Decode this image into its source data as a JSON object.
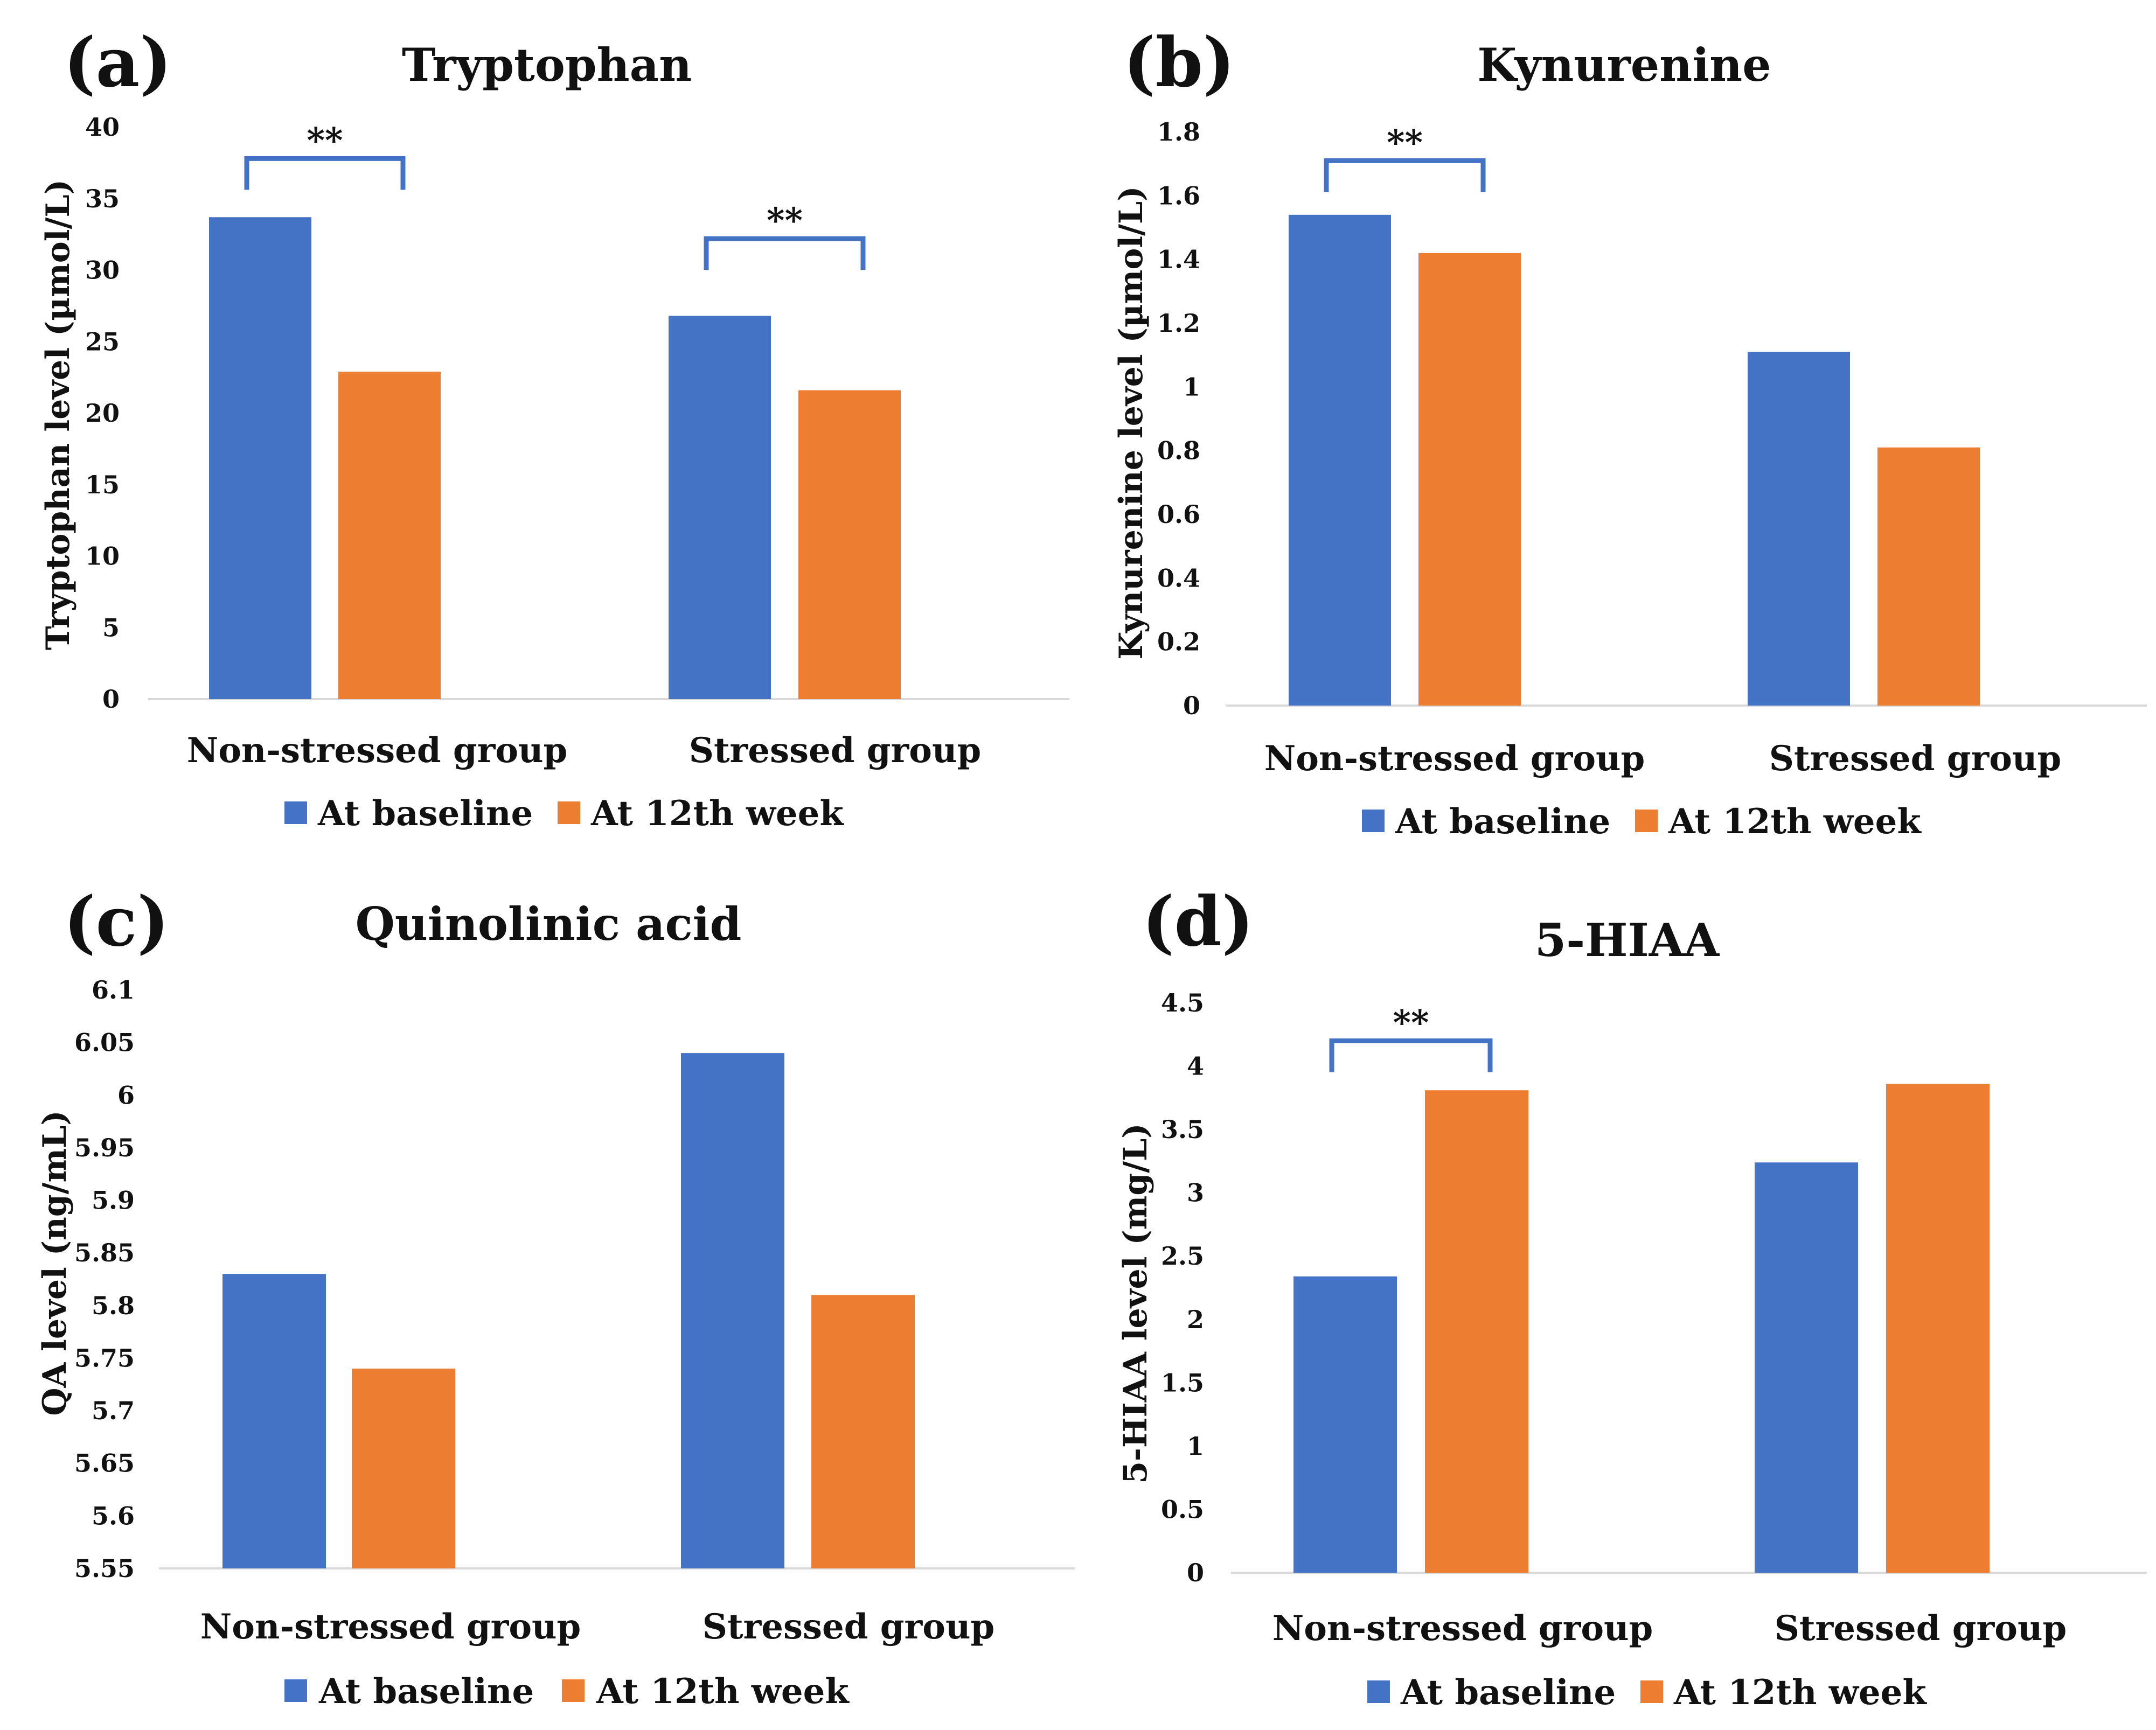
{
  "colors": {
    "baseline": "#4472C4",
    "week12": "#ED7D31",
    "bracket": "#4472C4"
  },
  "chart_data": [
    {
      "panel": "(a)",
      "type": "bar",
      "title": "Tryptophan",
      "ylabel": "Tryptophan level (µmol/L)",
      "xlabel": "",
      "categories": [
        "Non-stressed group",
        "Stressed group"
      ],
      "series": [
        {
          "name": "At baseline",
          "values": [
            33.7,
            26.8
          ]
        },
        {
          "name": "At 12th week",
          "values": [
            22.9,
            21.6
          ]
        }
      ],
      "ylim": [
        0,
        40
      ],
      "yticks": [
        "0",
        "5",
        "10",
        "15",
        "20",
        "25",
        "30",
        "35",
        "40"
      ],
      "tick_values": [
        0,
        5,
        10,
        15,
        20,
        25,
        30,
        35,
        40
      ],
      "legend": "bottom",
      "significance": [
        {
          "category_index": 0,
          "label": "**",
          "y": 37.8
        },
        {
          "category_index": 1,
          "label": "**",
          "y": 32.2
        }
      ]
    },
    {
      "panel": "(b)",
      "type": "bar",
      "title": "Kynurenine",
      "ylabel": "Kynurenine level (µmol/L)",
      "xlabel": "",
      "categories": [
        "Non-stressed group",
        "Stressed group"
      ],
      "series": [
        {
          "name": "At baseline",
          "values": [
            1.54,
            1.11
          ]
        },
        {
          "name": "At 12th week",
          "values": [
            1.42,
            0.81
          ]
        }
      ],
      "ylim": [
        0,
        1.8
      ],
      "yticks": [
        "0",
        "0.2",
        "0.4",
        "0.6",
        "0.8",
        "1",
        "1.2",
        "1.4",
        "1.6",
        "1.8"
      ],
      "tick_values": [
        0,
        0.2,
        0.4,
        0.6,
        0.8,
        1,
        1.2,
        1.4,
        1.6,
        1.8
      ],
      "legend": "bottom",
      "significance": [
        {
          "category_index": 0,
          "label": "**",
          "y": 1.71
        }
      ]
    },
    {
      "panel": "(c)",
      "type": "bar",
      "title": "Quinolinic acid",
      "ylabel": "QA level (ng/mL)",
      "xlabel": "",
      "categories": [
        "Non-stressed group",
        "Stressed group"
      ],
      "series": [
        {
          "name": "At baseline",
          "values": [
            5.83,
            6.04
          ]
        },
        {
          "name": "At 12th week",
          "values": [
            5.74,
            5.81
          ]
        }
      ],
      "ylim": [
        5.55,
        6.1
      ],
      "yticks": [
        "5.55",
        "5.6",
        "5.65",
        "5.7",
        "5.75",
        "5.8",
        "5.85",
        "5.9",
        "5.95",
        "6",
        "6.05",
        "6.1"
      ],
      "tick_values": [
        5.55,
        5.6,
        5.65,
        5.7,
        5.75,
        5.8,
        5.85,
        5.9,
        5.95,
        6,
        6.05,
        6.1
      ],
      "legend": "bottom",
      "significance": []
    },
    {
      "panel": "(d)",
      "type": "bar",
      "title": "5-HIAA",
      "ylabel": "5-HIAA level (mg/L)",
      "xlabel": "",
      "categories": [
        "Non-stressed group",
        "Stressed group"
      ],
      "series": [
        {
          "name": "At baseline",
          "values": [
            2.34,
            3.24
          ]
        },
        {
          "name": "At 12th week",
          "values": [
            3.81,
            3.86
          ]
        }
      ],
      "ylim": [
        0,
        4.5
      ],
      "yticks": [
        "0",
        "0.5",
        "1",
        "1.5",
        "2",
        "2.5",
        "3",
        "3.5",
        "4",
        "4.5"
      ],
      "tick_values": [
        0,
        0.5,
        1,
        1.5,
        2,
        2.5,
        3,
        3.5,
        4,
        4.5
      ],
      "legend": "bottom",
      "significance": [
        {
          "category_index": 0,
          "label": "**",
          "y": 4.2
        }
      ]
    }
  ]
}
